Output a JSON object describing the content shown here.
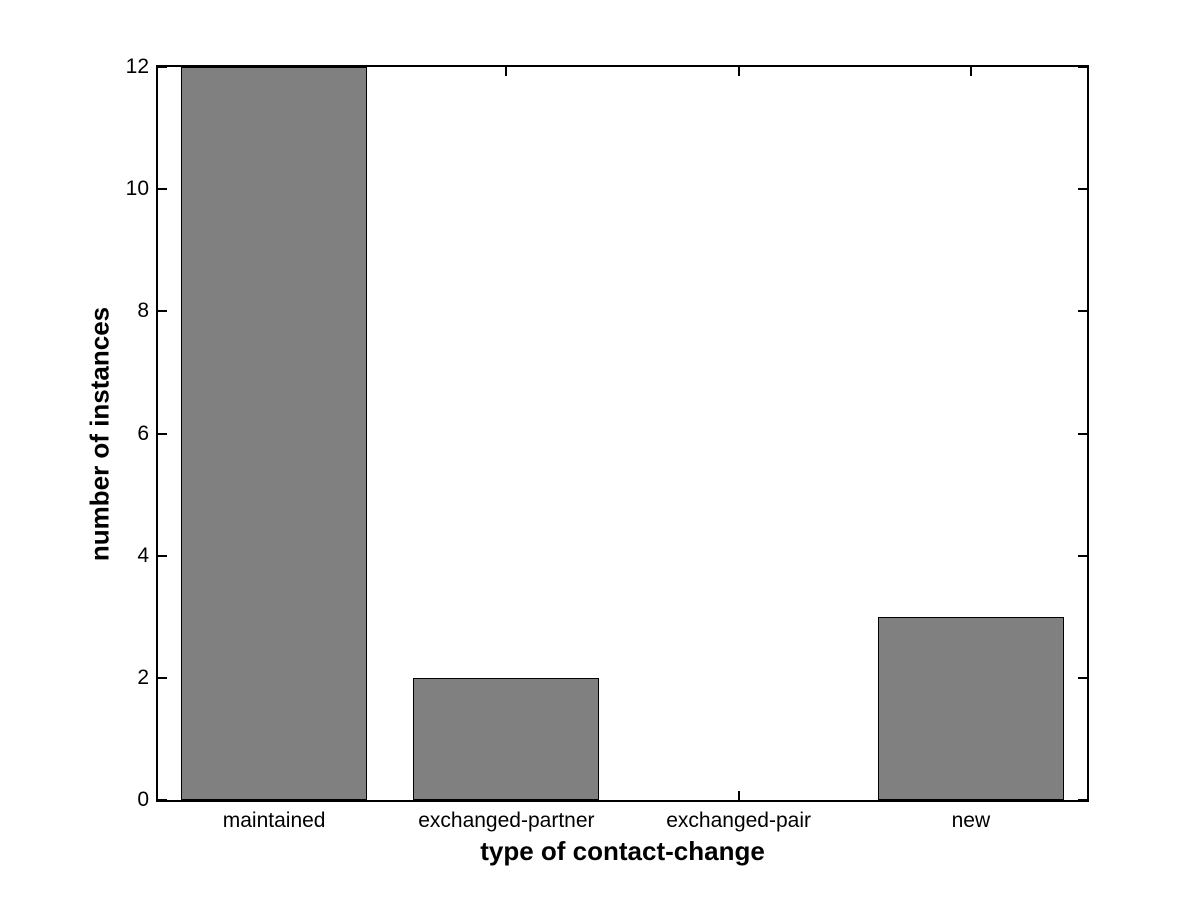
{
  "chart_data": {
    "type": "bar",
    "title": "",
    "categories": [
      "maintained",
      "exchanged-partner",
      "exchanged-pair",
      "new"
    ],
    "values": [
      12,
      2,
      0,
      3
    ],
    "xlabel": "type of contact-change",
    "ylabel": "number of instances",
    "ylim": [
      0,
      12
    ],
    "yticks": [
      0,
      2,
      4,
      6,
      8,
      10,
      12
    ],
    "ytick_labels": [
      "0",
      "2",
      "4",
      "6",
      "8",
      "10",
      "12"
    ],
    "bar_width_fraction": 0.8,
    "bar_fill_color": "#808080",
    "bar_edge_color": "#000000",
    "axis_color": "#000000",
    "background_color": "#ffffff",
    "grid": false,
    "legend": false
  }
}
